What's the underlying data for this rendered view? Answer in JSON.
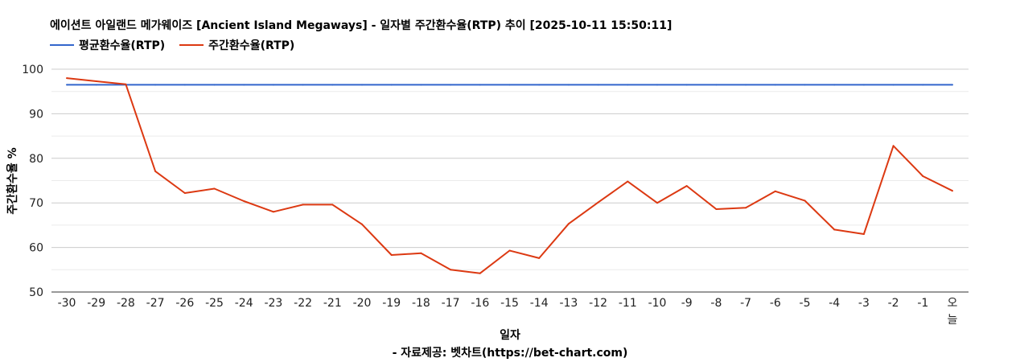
{
  "chart_data": {
    "type": "line",
    "title": "에이션트 아일랜드 메가웨이즈 [Ancient Island Megaways] - 일자별 주간환수율(RTP) 추이 [2025-10-11 15:50:11]",
    "xlabel": "일자",
    "ylabel": "주간환수율 %",
    "source": "- 자료제공: 벳차트(https://bet-chart.com)",
    "categories": [
      "-30",
      "-29",
      "-28",
      "-27",
      "-26",
      "-25",
      "-24",
      "-23",
      "-22",
      "-21",
      "-20",
      "-19",
      "-18",
      "-17",
      "-16",
      "-15",
      "-14",
      "-13",
      "-12",
      "-11",
      "-10",
      "-9",
      "-8",
      "-7",
      "-6",
      "-5",
      "-4",
      "-3",
      "-2",
      "-1",
      "오늘"
    ],
    "ylim": [
      50,
      100
    ],
    "yticks": [
      50,
      60,
      70,
      80,
      90,
      100
    ],
    "grid": true,
    "legend_position": "top-left",
    "series": [
      {
        "name": "평균환수율(RTP)",
        "color": "#3366cc",
        "values": [
          96.5,
          96.5,
          96.5,
          96.5,
          96.5,
          96.5,
          96.5,
          96.5,
          96.5,
          96.5,
          96.5,
          96.5,
          96.5,
          96.5,
          96.5,
          96.5,
          96.5,
          96.5,
          96.5,
          96.5,
          96.5,
          96.5,
          96.5,
          96.5,
          96.5,
          96.5,
          96.5,
          96.5,
          96.5,
          96.5,
          96.5
        ]
      },
      {
        "name": "주간환수율(RTP)",
        "color": "#dc3912",
        "values": [
          98.0,
          97.3,
          96.6,
          77.1,
          72.2,
          73.2,
          70.4,
          68.0,
          69.6,
          69.6,
          65.2,
          58.3,
          58.7,
          55.0,
          54.2,
          59.3,
          57.6,
          65.3,
          70.1,
          74.8,
          70.0,
          73.8,
          68.6,
          68.9,
          72.6,
          70.5,
          64.0,
          63.0,
          82.8,
          76.0,
          72.7
        ]
      }
    ]
  }
}
